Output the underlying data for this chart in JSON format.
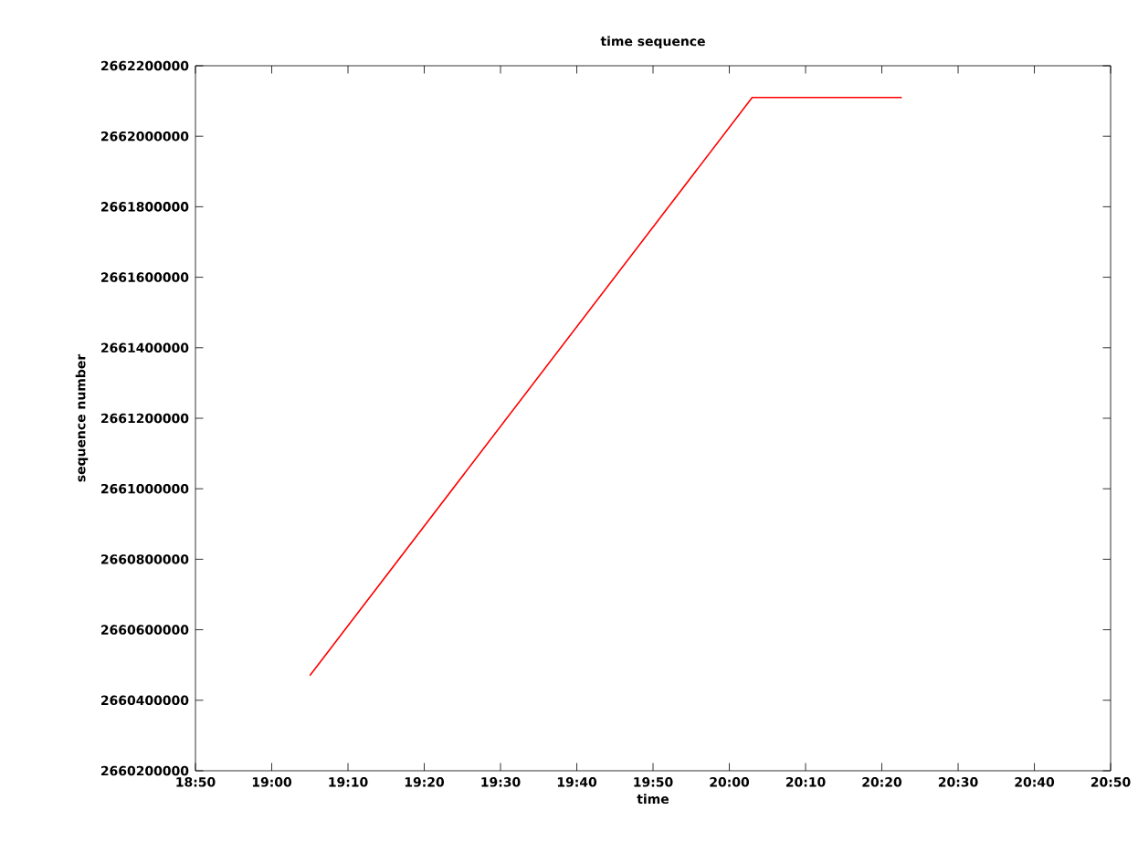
{
  "chart_data": {
    "type": "line",
    "title": "time sequence",
    "xlabel": "time",
    "ylabel": "sequence number",
    "series": [
      {
        "color": "#ff0000",
        "x": [
          19.0833,
          20.05,
          20.377
        ],
        "values": [
          2660470000,
          2662110000,
          2662110000
        ]
      }
    ],
    "xlim": [
      18.8333,
      20.8333
    ],
    "xticks": [
      {
        "value": 18.8333,
        "label": "18:50"
      },
      {
        "value": 19.0,
        "label": "19:00"
      },
      {
        "value": 19.1667,
        "label": "19:10"
      },
      {
        "value": 19.3333,
        "label": "19:20"
      },
      {
        "value": 19.5,
        "label": "19:30"
      },
      {
        "value": 19.6667,
        "label": "19:40"
      },
      {
        "value": 19.8333,
        "label": "19:50"
      },
      {
        "value": 20.0,
        "label": "20:00"
      },
      {
        "value": 20.1667,
        "label": "20:10"
      },
      {
        "value": 20.3333,
        "label": "20:20"
      },
      {
        "value": 20.5,
        "label": "20:30"
      },
      {
        "value": 20.6667,
        "label": "20:40"
      },
      {
        "value": 20.8333,
        "label": "20:50"
      }
    ],
    "ylim": [
      2660200000,
      2662200000
    ],
    "yticks": [
      2660200000,
      2660400000,
      2660600000,
      2660800000,
      2661000000,
      2661200000,
      2661400000,
      2661600000,
      2661800000,
      2662000000,
      2662200000
    ],
    "grid": false,
    "marker": "none",
    "line_style": "solid"
  }
}
